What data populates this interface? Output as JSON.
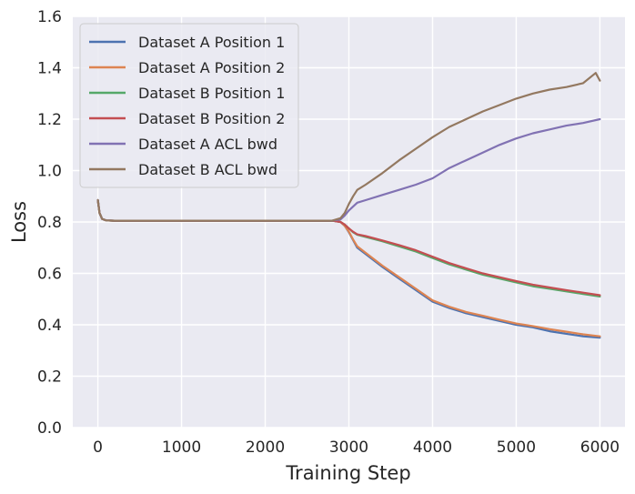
{
  "chart_data": {
    "type": "line",
    "title": "",
    "xlabel": "Training Step",
    "ylabel": "Loss",
    "xlim": [
      -300,
      6300
    ],
    "ylim": [
      0.0,
      1.6
    ],
    "xticks": [
      0,
      1000,
      2000,
      3000,
      4000,
      5000,
      6000
    ],
    "xtick_labels": [
      "0",
      "1000",
      "2000",
      "3000",
      "4000",
      "5000",
      "6000"
    ],
    "yticks": [
      0.0,
      0.2,
      0.4,
      0.6,
      0.8,
      1.0,
      1.2,
      1.4,
      1.6
    ],
    "ytick_labels": [
      "0.0",
      "0.2",
      "0.4",
      "0.6",
      "0.8",
      "1.0",
      "1.2",
      "1.4",
      "1.6"
    ],
    "grid": true,
    "legend_position": "top-left",
    "series": [
      {
        "name": "Dataset A Position 1",
        "color": "#4c72b0",
        "x": [
          0,
          20,
          50,
          100,
          200,
          500,
          1000,
          2000,
          2800,
          2900,
          2950,
          3000,
          3050,
          3100,
          3200,
          3400,
          3600,
          3800,
          4000,
          4200,
          4400,
          4600,
          4800,
          5000,
          5200,
          5400,
          5600,
          5800,
          6000
        ],
        "y": [
          0.885,
          0.835,
          0.812,
          0.806,
          0.805,
          0.805,
          0.805,
          0.805,
          0.805,
          0.8,
          0.785,
          0.76,
          0.73,
          0.7,
          0.675,
          0.625,
          0.58,
          0.535,
          0.49,
          0.465,
          0.445,
          0.43,
          0.415,
          0.4,
          0.39,
          0.375,
          0.365,
          0.355,
          0.35
        ]
      },
      {
        "name": "Dataset A Position 2",
        "color": "#dd8452",
        "x": [
          0,
          20,
          50,
          100,
          200,
          500,
          1000,
          2000,
          2800,
          2900,
          2950,
          3000,
          3050,
          3100,
          3200,
          3400,
          3600,
          3800,
          4000,
          4200,
          4400,
          4600,
          4800,
          5000,
          5200,
          5400,
          5600,
          5800,
          6000
        ],
        "y": [
          0.885,
          0.835,
          0.812,
          0.806,
          0.805,
          0.805,
          0.805,
          0.805,
          0.805,
          0.8,
          0.785,
          0.762,
          0.732,
          0.705,
          0.68,
          0.63,
          0.585,
          0.54,
          0.495,
          0.47,
          0.45,
          0.435,
          0.42,
          0.405,
          0.395,
          0.383,
          0.373,
          0.363,
          0.355
        ]
      },
      {
        "name": "Dataset B Position 1",
        "color": "#55a868",
        "x": [
          0,
          20,
          50,
          100,
          200,
          500,
          1000,
          2000,
          2800,
          2900,
          2950,
          3000,
          3050,
          3100,
          3200,
          3400,
          3600,
          3800,
          4000,
          4200,
          4400,
          4600,
          4800,
          5000,
          5200,
          5400,
          5600,
          5800,
          6000
        ],
        "y": [
          0.885,
          0.835,
          0.812,
          0.806,
          0.805,
          0.805,
          0.805,
          0.805,
          0.805,
          0.8,
          0.79,
          0.775,
          0.76,
          0.75,
          0.742,
          0.725,
          0.705,
          0.685,
          0.66,
          0.635,
          0.615,
          0.595,
          0.58,
          0.565,
          0.55,
          0.54,
          0.53,
          0.52,
          0.51
        ]
      },
      {
        "name": "Dataset B Position 2",
        "color": "#c44e52",
        "x": [
          0,
          20,
          50,
          100,
          200,
          500,
          1000,
          2000,
          2800,
          2900,
          2950,
          3000,
          3050,
          3100,
          3200,
          3400,
          3600,
          3800,
          4000,
          4200,
          4400,
          4600,
          4800,
          5000,
          5200,
          5400,
          5600,
          5800,
          6000
        ],
        "y": [
          0.885,
          0.835,
          0.812,
          0.806,
          0.805,
          0.805,
          0.805,
          0.805,
          0.805,
          0.8,
          0.79,
          0.775,
          0.762,
          0.752,
          0.745,
          0.728,
          0.71,
          0.69,
          0.665,
          0.64,
          0.62,
          0.6,
          0.585,
          0.57,
          0.556,
          0.545,
          0.535,
          0.525,
          0.515
        ]
      },
      {
        "name": "Dataset A ACL bwd",
        "color": "#8172b3",
        "x": [
          0,
          20,
          50,
          100,
          200,
          500,
          1000,
          2000,
          2800,
          2900,
          2950,
          3000,
          3050,
          3100,
          3200,
          3400,
          3600,
          3800,
          4000,
          4200,
          4400,
          4600,
          4800,
          5000,
          5200,
          5400,
          5600,
          5800,
          6000
        ],
        "y": [
          0.885,
          0.835,
          0.812,
          0.806,
          0.805,
          0.805,
          0.805,
          0.805,
          0.805,
          0.81,
          0.825,
          0.845,
          0.86,
          0.875,
          0.885,
          0.905,
          0.925,
          0.945,
          0.97,
          1.01,
          1.04,
          1.07,
          1.1,
          1.125,
          1.145,
          1.16,
          1.175,
          1.185,
          1.2
        ]
      },
      {
        "name": "Dataset B ACL bwd",
        "color": "#937860",
        "x": [
          0,
          20,
          50,
          100,
          200,
          500,
          1000,
          2000,
          2800,
          2900,
          2950,
          3000,
          3050,
          3100,
          3200,
          3400,
          3600,
          3800,
          4000,
          4200,
          4400,
          4600,
          4800,
          5000,
          5200,
          5400,
          5600,
          5800,
          5950,
          6000
        ],
        "y": [
          0.885,
          0.835,
          0.812,
          0.806,
          0.805,
          0.805,
          0.805,
          0.805,
          0.805,
          0.815,
          0.835,
          0.87,
          0.9,
          0.925,
          0.945,
          0.99,
          1.04,
          1.085,
          1.13,
          1.17,
          1.2,
          1.23,
          1.255,
          1.28,
          1.3,
          1.315,
          1.325,
          1.34,
          1.38,
          1.35
        ]
      }
    ]
  }
}
